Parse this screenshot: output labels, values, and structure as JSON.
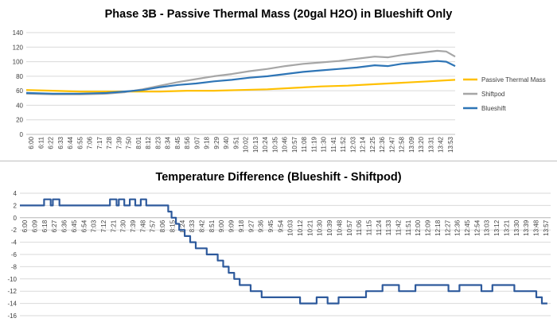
{
  "chart_data": [
    {
      "type": "line",
      "title": "Phase 3B - Passive Thermal Mass (20gal H2O) in Blueshift Only",
      "xlabel": "",
      "ylabel": "",
      "ylim": [
        0,
        140
      ],
      "yticks": [
        0,
        20,
        40,
        60,
        80,
        100,
        120,
        140
      ],
      "grid": true,
      "legend_position": "right",
      "x_tick_labels": [
        "6:00",
        "6:11",
        "6:22",
        "6:33",
        "6:44",
        "6:55",
        "7:06",
        "7:17",
        "7:28",
        "7:39",
        "7:50",
        "8:01",
        "8:12",
        "8:23",
        "8:34",
        "8:45",
        "8:56",
        "9:07",
        "9:18",
        "9:29",
        "9:40",
        "9:51",
        "10:02",
        "10:13",
        "10:24",
        "10:35",
        "10:46",
        "10:57",
        "11:08",
        "11:19",
        "11:30",
        "11:41",
        "11:52",
        "12:03",
        "12:14",
        "12:25",
        "12:36",
        "12:47",
        "12:58",
        "13:09",
        "13:20",
        "13:31",
        "13:42",
        "13:53"
      ],
      "x_start_minutes": 360,
      "x_end_minutes": 840,
      "series": [
        {
          "name": "Passive Thermal Mass",
          "color": "#FFC000",
          "x": [
            "6:00",
            "6:30",
            "7:00",
            "7:30",
            "8:00",
            "8:30",
            "9:00",
            "9:30",
            "10:00",
            "10:30",
            "11:00",
            "11:30",
            "12:00",
            "12:30",
            "13:00",
            "13:30",
            "14:00"
          ],
          "values": [
            61,
            60,
            59,
            59,
            59,
            59,
            60,
            60,
            61,
            62,
            64,
            66,
            67,
            69,
            71,
            73,
            75
          ]
        },
        {
          "name": "Shiftpod",
          "color": "#A6A6A6",
          "x": [
            "6:00",
            "6:30",
            "7:00",
            "7:30",
            "7:50",
            "8:10",
            "8:30",
            "8:50",
            "9:10",
            "9:30",
            "9:50",
            "10:10",
            "10:30",
            "10:50",
            "11:10",
            "11:30",
            "11:50",
            "12:10",
            "12:30",
            "12:45",
            "13:00",
            "13:20",
            "13:40",
            "13:50",
            "14:00"
          ],
          "values": [
            56,
            55,
            55,
            56,
            58,
            62,
            67,
            72,
            76,
            80,
            83,
            87,
            90,
            94,
            97,
            99,
            101,
            104,
            107,
            106,
            109,
            112,
            115,
            114,
            107
          ]
        },
        {
          "name": "Blueshift",
          "color": "#2E75B6",
          "x": [
            "6:00",
            "6:30",
            "7:00",
            "7:30",
            "7:50",
            "8:10",
            "8:30",
            "8:50",
            "9:10",
            "9:30",
            "9:50",
            "10:10",
            "10:30",
            "10:50",
            "11:10",
            "11:30",
            "11:50",
            "12:10",
            "12:30",
            "12:45",
            "13:00",
            "13:20",
            "13:40",
            "13:50",
            "14:00"
          ],
          "values": [
            57,
            56,
            56,
            57,
            59,
            61,
            65,
            68,
            70,
            73,
            75,
            78,
            80,
            83,
            86,
            88,
            90,
            92,
            95,
            94,
            97,
            99,
            101,
            100,
            94
          ]
        }
      ]
    },
    {
      "type": "line",
      "title": "Temperature Difference (Blueshift - Shiftpod)",
      "xlabel": "",
      "ylabel": "",
      "ylim": [
        -16,
        4
      ],
      "yticks": [
        -16,
        -14,
        -12,
        -10,
        -8,
        -6,
        -4,
        -2,
        0,
        2,
        4
      ],
      "grid": true,
      "x_tick_labels": [
        "6:00",
        "6:09",
        "6:18",
        "6:27",
        "6:36",
        "6:45",
        "6:54",
        "7:03",
        "7:12",
        "7:21",
        "7:30",
        "7:39",
        "7:48",
        "7:57",
        "8:06",
        "8:15",
        "8:24",
        "8:33",
        "8:42",
        "8:51",
        "9:00",
        "9:09",
        "9:18",
        "9:27",
        "9:36",
        "9:45",
        "9:54",
        "10:03",
        "10:12",
        "10:21",
        "10:30",
        "10:39",
        "10:48",
        "10:57",
        "11:06",
        "11:15",
        "11:24",
        "11:33",
        "11:42",
        "11:51",
        "12:00",
        "12:09",
        "12:18",
        "12:27",
        "12:36",
        "12:45",
        "12:54",
        "13:03",
        "13:12",
        "13:21",
        "13:30",
        "13:39",
        "13:48",
        "13:57"
      ],
      "x_start_minutes": 360,
      "x_end_minutes": 843,
      "series": [
        {
          "name": "Blueshift - Shiftpod",
          "color": "#2E5A9C",
          "x": [
            "6:00",
            "6:20",
            "6:22",
            "6:28",
            "6:30",
            "6:32",
            "6:36",
            "6:40",
            "7:20",
            "7:22",
            "7:28",
            "7:30",
            "7:35",
            "7:40",
            "7:45",
            "7:50",
            "7:55",
            "8:00",
            "8:05",
            "8:10",
            "8:15",
            "8:18",
            "8:22",
            "8:25",
            "8:30",
            "8:35",
            "8:40",
            "8:45",
            "8:50",
            "8:55",
            "9:00",
            "9:05",
            "9:10",
            "9:15",
            "9:20",
            "9:25",
            "9:30",
            "9:35",
            "9:40",
            "9:45",
            "9:55",
            "10:00",
            "10:15",
            "10:25",
            "10:30",
            "10:40",
            "10:50",
            "11:00",
            "11:15",
            "11:30",
            "11:45",
            "12:00",
            "12:10",
            "12:20",
            "12:30",
            "12:40",
            "12:50",
            "13:00",
            "13:10",
            "13:20",
            "13:30",
            "13:40",
            "13:45",
            "13:50",
            "13:55",
            "14:00"
          ],
          "values": [
            2,
            2,
            3,
            2,
            3,
            3,
            2,
            2,
            2,
            3,
            2,
            3,
            2,
            3,
            2,
            3,
            2,
            2,
            2,
            2,
            1,
            0,
            -1,
            -2,
            -3,
            -4,
            -5,
            -5,
            -6,
            -6,
            -7,
            -8,
            -9,
            -10,
            -11,
            -11,
            -12,
            -12,
            -13,
            -13,
            -13,
            -13,
            -14,
            -14,
            -13,
            -14,
            -13,
            -13,
            -12,
            -11,
            -12,
            -11,
            -11,
            -11,
            -12,
            -11,
            -11,
            -12,
            -11,
            -11,
            -12,
            -12,
            -12,
            -13,
            -14,
            -14
          ]
        }
      ]
    }
  ]
}
